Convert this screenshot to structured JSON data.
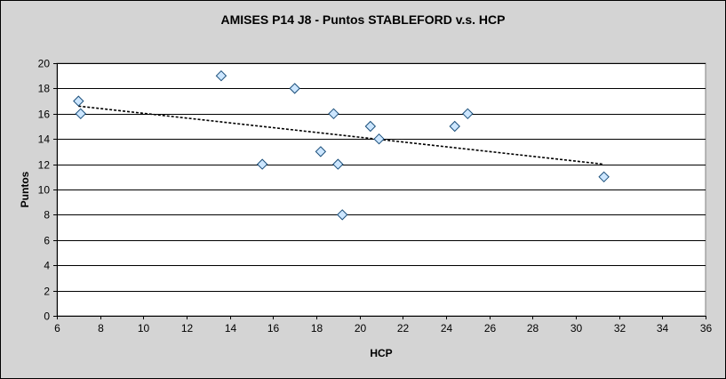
{
  "chart_data": {
    "type": "scatter",
    "title": "AMISES P14 J8 - Puntos STABLEFORD v.s. HCP",
    "xlabel": "HCP",
    "ylabel": "Puntos",
    "xlim": [
      6,
      36
    ],
    "ylim": [
      0,
      20
    ],
    "x_ticks": [
      6,
      8,
      10,
      12,
      14,
      16,
      18,
      20,
      22,
      24,
      26,
      28,
      30,
      32,
      34,
      36
    ],
    "y_ticks": [
      0,
      2,
      4,
      6,
      8,
      10,
      12,
      14,
      16,
      18,
      20
    ],
    "grid": "horizontal",
    "legend": "none",
    "series": [
      {
        "points": [
          {
            "x": 7.0,
            "y": 17
          },
          {
            "x": 7.1,
            "y": 16
          },
          {
            "x": 13.6,
            "y": 19
          },
          {
            "x": 15.5,
            "y": 12
          },
          {
            "x": 17.0,
            "y": 18
          },
          {
            "x": 18.2,
            "y": 13
          },
          {
            "x": 18.8,
            "y": 16
          },
          {
            "x": 19.0,
            "y": 12
          },
          {
            "x": 19.2,
            "y": 8
          },
          {
            "x": 20.5,
            "y": 15
          },
          {
            "x": 20.9,
            "y": 14
          },
          {
            "x": 24.4,
            "y": 15
          },
          {
            "x": 25.0,
            "y": 16
          },
          {
            "x": 31.3,
            "y": 11
          }
        ]
      }
    ],
    "trendline": {
      "type": "linear",
      "from": {
        "x": 7.0,
        "y": 16.6
      },
      "to": {
        "x": 31.3,
        "y": 12.0
      }
    },
    "colors": {
      "background": "#d4d4d4",
      "plot_area": "#ffffff",
      "marker_fill": "#cce6ff",
      "marker_stroke": "#1a4e7a",
      "trendline": "#000000",
      "grid": "#000000"
    }
  }
}
